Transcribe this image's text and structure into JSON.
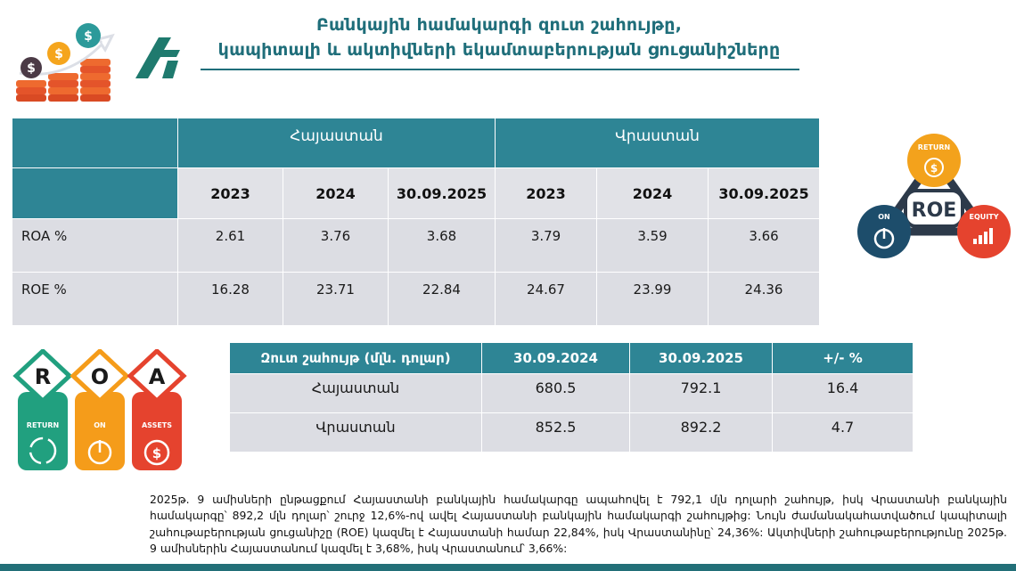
{
  "title": {
    "line1": "Բանկային համակարգի զուտ շահույթը,",
    "line2": "կապիտալի և ակտիվների եկամտաբերության ցուցանիշները"
  },
  "main_table": {
    "groups": [
      "Հայաստան",
      "Վրաստան"
    ],
    "periods": [
      "2023",
      "2024",
      "30.09.2025",
      "2023",
      "2024",
      "30.09.2025"
    ],
    "rows": [
      {
        "label": "ROA %",
        "values": [
          "2.61",
          "3.76",
          "3.68",
          "3.79",
          "3.59",
          "3.66"
        ]
      },
      {
        "label": "ROE %",
        "values": [
          "16.28",
          "23.71",
          "22.84",
          "24.67",
          "23.99",
          "24.36"
        ]
      }
    ]
  },
  "profit_table": {
    "headers": [
      "Զուտ շահույթ (մլն. դոլար)",
      "30.09.2024",
      "30.09.2025",
      "+/- %"
    ],
    "rows": [
      {
        "country": "Հայաստան",
        "values": [
          "680.5",
          "792.1",
          "16.4"
        ]
      },
      {
        "country": "Վրաստան",
        "values": [
          "852.5",
          "892.2",
          "4.7"
        ]
      }
    ]
  },
  "roe_graphic": {
    "center": "ROE",
    "labels": [
      "RETURN",
      "ON",
      "EQUITY"
    ],
    "colors": {
      "return": "#f3a21c",
      "on": "#1d4d6b",
      "equity": "#e5432e"
    }
  },
  "roa_graphic": {
    "letters": [
      "R",
      "O",
      "A"
    ],
    "labels": [
      "RETURN",
      "ON",
      "ASSETS"
    ],
    "colors": {
      "return": "#21a07f",
      "on": "#f59c1a",
      "assets": "#e5432e"
    }
  },
  "paragraph": "2025թ. 9 ամիսների ընթացքում Հայաստանի բանկային համակարգը ապահովել է 792,1 մլն դոլարի շահույթ, իսկ Վրաստանի բանկային համակարգը՝ 892,2 մլն դոլար՝ շուրջ 12,6%-ով ավել Հայաստանի բանկային համակարգի շահույթից: Նույն ժամանակահատվածում կապիտալի շահութաբերության ցուցանիշը (ROE) կազմել է Հայաստանի համար 22,84%, իսկ Վրաստանինը՝ 24,36%: Ակտիվների շահութաբերությունը 2025թ. 9 ամիսներին Հայաստանում կազմել է 3,68%, իսկ Վրաստանում՝ 3,66%:",
  "colors": {
    "header_teal": "#2e8595",
    "cell_gray": "#dcdde3",
    "title_teal": "#1f6e7a",
    "bar": "#226f78"
  }
}
